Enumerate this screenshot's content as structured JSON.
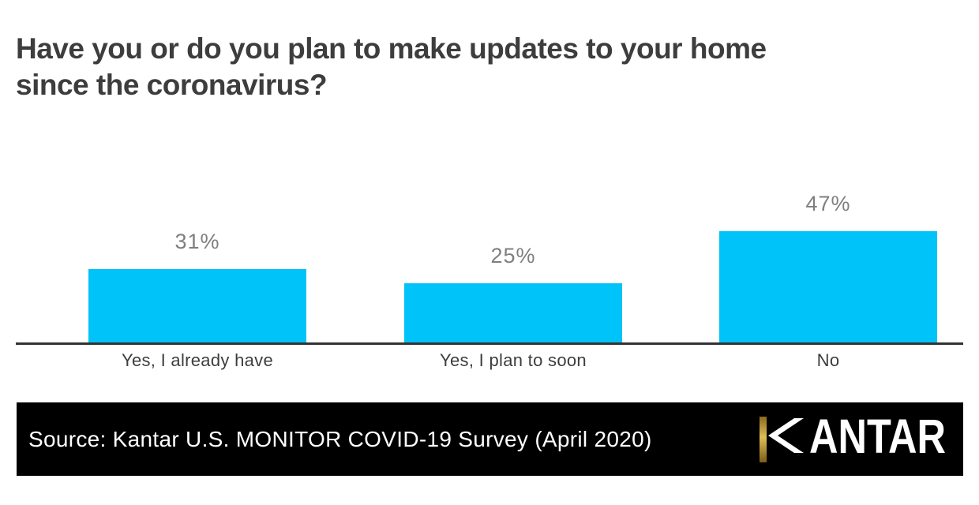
{
  "title": {
    "full": "Have you or do you plan to make updates to your home since the coronavirus?",
    "lines": [
      "Have you or do you plan to make updates to your home",
      "since the coronavirus?"
    ]
  },
  "chart_data": {
    "type": "bar",
    "title": "Have you or do you plan to make updates to your home since the coronavirus?",
    "categories": [
      "Yes, I already have",
      "Yes, I plan to soon",
      "No"
    ],
    "values": [
      31,
      25,
      47
    ],
    "value_labels": [
      "31%",
      "25%",
      "47%"
    ],
    "xlabel": "",
    "ylabel": "",
    "ylim": [
      0,
      100
    ],
    "grid": false,
    "legend": "none",
    "bar_color": "#00C3F9",
    "value_label_color": "#7F7F7F",
    "category_label_color": "#3D3D3D",
    "axis_line_color": "#333333"
  },
  "footer": {
    "source_text": "Source: Kantar U.S. MONITOR COVID-19 Survey (April 2020)",
    "logo_text": "KANTAR",
    "logo_text_after_k": "ANTAR",
    "background_color": "#000000",
    "text_color": "#FFFFFF",
    "logo_gold_color": "#C9A227"
  }
}
